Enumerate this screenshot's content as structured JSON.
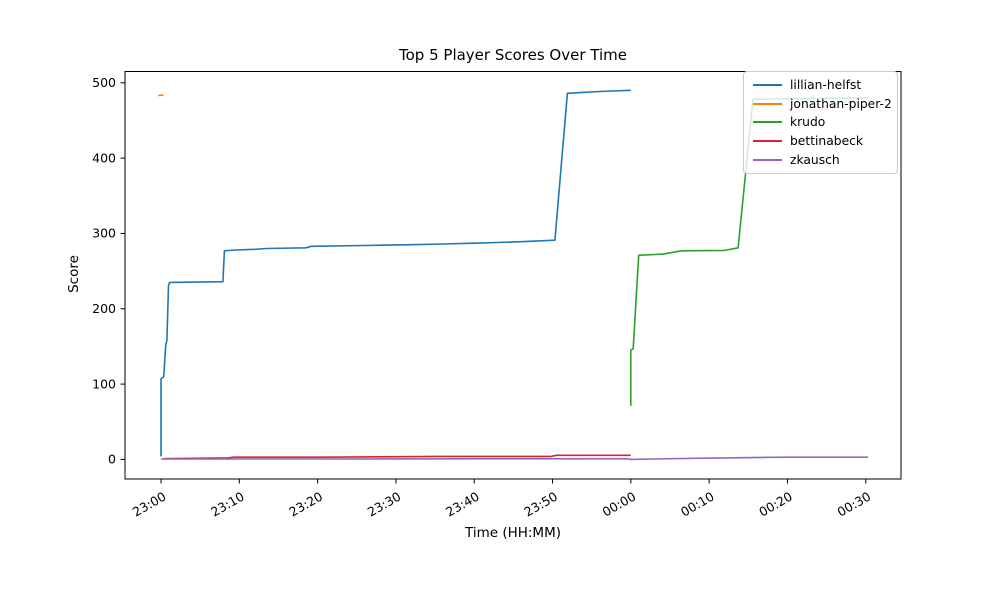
{
  "chart_data": {
    "type": "line",
    "title": "Top 5 Player Scores Over Time",
    "xlabel": "Time (HH:MM)",
    "ylabel": "Score",
    "grid": false,
    "x_tick_labels": [
      "23:00",
      "23:10",
      "23:20",
      "23:30",
      "23:40",
      "23:50",
      "00:00",
      "00:10",
      "00:20",
      "00:30"
    ],
    "x_tick_minutes": [
      0,
      10,
      20,
      30,
      40,
      50,
      60,
      70,
      80,
      90
    ],
    "y_ticks": [
      0,
      100,
      200,
      300,
      400,
      500
    ],
    "xlim_minutes": [
      -4.6,
      94.5
    ],
    "ylim": [
      -26,
      515
    ],
    "legend": {
      "position": "upper right",
      "entries": [
        "lillian-helfst",
        "jonathan-piper-2",
        "krudo",
        "bettinabeck",
        "zkausch"
      ]
    },
    "series": [
      {
        "name": "lillian-helfst",
        "color": "#1f77b4",
        "points_min_score": [
          [
            0,
            4
          ],
          [
            0,
            107
          ],
          [
            0.35,
            110
          ],
          [
            0.6,
            152
          ],
          [
            0.75,
            158
          ],
          [
            0.95,
            231
          ],
          [
            1.1,
            235
          ],
          [
            7.9,
            236
          ],
          [
            8.1,
            277
          ],
          [
            9.5,
            278
          ],
          [
            12,
            279
          ],
          [
            13.5,
            280
          ],
          [
            18.5,
            281
          ],
          [
            19.2,
            283
          ],
          [
            26,
            284
          ],
          [
            32,
            285
          ],
          [
            36,
            286
          ],
          [
            40,
            287
          ],
          [
            43,
            288
          ],
          [
            46,
            289
          ],
          [
            50.3,
            291
          ],
          [
            51.9,
            486
          ],
          [
            53.5,
            487
          ],
          [
            56,
            488.5
          ],
          [
            60,
            490
          ]
        ]
      },
      {
        "name": "jonathan-piper-2",
        "color": "#ff7f0e",
        "points_min_score": [
          [
            -0.35,
            483
          ],
          [
            0.3,
            484
          ]
        ]
      },
      {
        "name": "krudo",
        "color": "#2ca02c",
        "points_min_score": [
          [
            60,
            71
          ],
          [
            60,
            145
          ],
          [
            60.3,
            147
          ],
          [
            61,
            271
          ],
          [
            63,
            272
          ],
          [
            64,
            272.5
          ],
          [
            66.5,
            277
          ],
          [
            72,
            277.5
          ],
          [
            73.7,
            281
          ],
          [
            75.6,
            478
          ],
          [
            78,
            478.5
          ],
          [
            83,
            479
          ],
          [
            90.3,
            480
          ]
        ]
      },
      {
        "name": "bettinabeck",
        "color": "#d62728",
        "points_min_score": [
          [
            0.3,
            1
          ],
          [
            4,
            1.5
          ],
          [
            8.5,
            2
          ],
          [
            9.3,
            3
          ],
          [
            20,
            3
          ],
          [
            28,
            3.5
          ],
          [
            35,
            4
          ],
          [
            49.8,
            4
          ],
          [
            50.5,
            5.5
          ],
          [
            60,
            5.5
          ]
        ]
      },
      {
        "name": "zkausch",
        "color": "#9467bd",
        "points_min_score": [
          [
            0,
            0.5
          ],
          [
            20,
            0.5
          ],
          [
            40,
            0.8
          ],
          [
            59.5,
            1
          ],
          [
            60,
            0
          ],
          [
            63,
            0.5
          ],
          [
            68,
            1.5
          ],
          [
            72,
            2
          ],
          [
            78,
            2.8
          ],
          [
            80,
            3
          ],
          [
            90.3,
            3
          ]
        ]
      }
    ]
  }
}
